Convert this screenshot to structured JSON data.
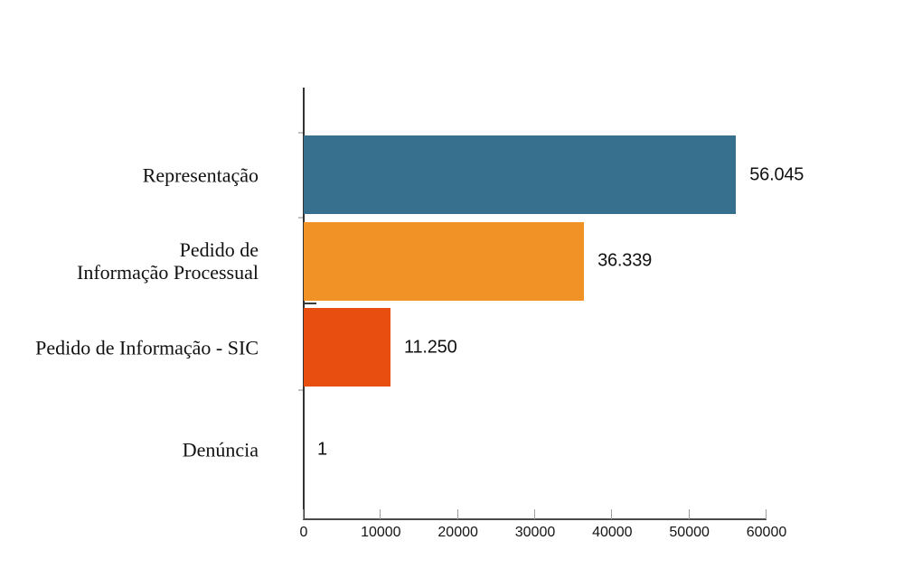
{
  "chart_data": {
    "type": "bar",
    "orientation": "horizontal",
    "title": "",
    "xlabel": "",
    "ylabel": "",
    "categories": [
      "Representação",
      "Pedido de Informação Processual",
      "Pedido de Informação - SIC",
      "Denúncia"
    ],
    "category_label_lines": [
      [
        "Representação"
      ],
      [
        "Pedido de",
        "Informação Processual"
      ],
      [
        "Pedido de Informação - SIC"
      ],
      [
        "Denúncia"
      ]
    ],
    "values": [
      56045,
      36339,
      11250,
      1
    ],
    "value_labels": [
      "56.045",
      "36.339",
      "11.250",
      "1"
    ],
    "bar_colors": [
      "#36708E",
      "#F19226",
      "#E84E10",
      "#36708E"
    ],
    "xlim": [
      0,
      60000
    ],
    "x_ticks": [
      0,
      10000,
      20000,
      30000,
      40000,
      50000,
      60000
    ],
    "x_tick_labels": [
      "0",
      "10000",
      "20000",
      "30000",
      "40000",
      "50000",
      "60000"
    ],
    "legend": false,
    "grid": false,
    "background_color": "#ffffff",
    "text_color": "#111111",
    "axis_color": "#333333",
    "tick_color": "#9e9e9e"
  }
}
